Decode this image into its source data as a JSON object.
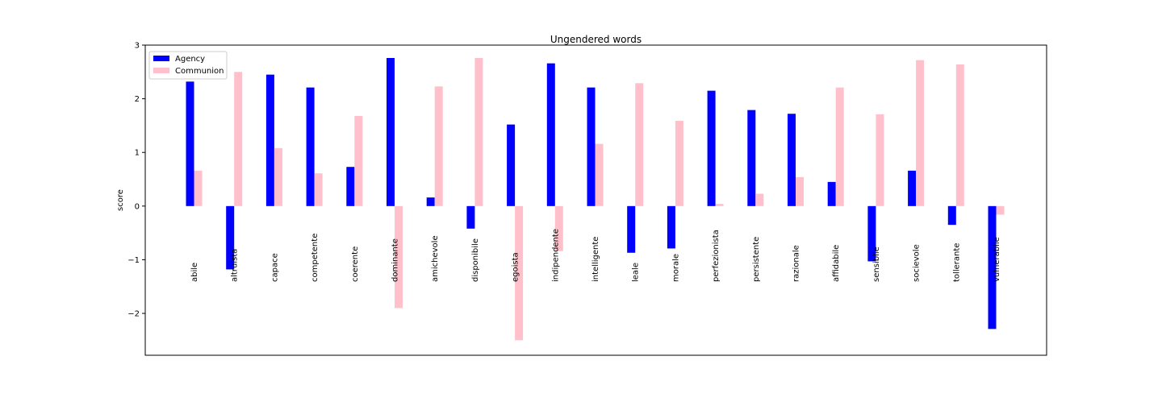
{
  "chart_data": {
    "type": "bar",
    "title": "Ungendered words",
    "xlabel": "",
    "ylabel": "score",
    "ylim": [
      -2.78,
      3.0
    ],
    "yticks": [
      3,
      2,
      1,
      0,
      -1,
      -2
    ],
    "ytick_labels": [
      "3",
      "2",
      "1",
      "0",
      "−1",
      "−2"
    ],
    "grid": false,
    "legend_position": "upper-left",
    "categories": [
      "abile",
      "altruista",
      "capace",
      "competente",
      "coerente",
      "dominante",
      "amichevole",
      "disponibile",
      "egoista",
      "indipendente",
      "intelligente",
      "leale",
      "morale",
      "perfezionista",
      "persistente",
      "razionale",
      "affidabile",
      "sensibile",
      "socievole",
      "tollerante",
      "vulnerabile"
    ],
    "series": [
      {
        "name": "Agency",
        "color": "#0000ff",
        "values": [
          2.32,
          -1.18,
          2.45,
          2.21,
          0.73,
          2.76,
          0.16,
          -0.42,
          1.52,
          2.66,
          2.21,
          -0.87,
          -0.79,
          2.15,
          1.79,
          1.72,
          0.45,
          -1.03,
          0.66,
          -0.35,
          -2.29
        ]
      },
      {
        "name": "Communion",
        "color": "#ffc0cb",
        "values": [
          0.66,
          2.5,
          1.08,
          0.61,
          1.68,
          -1.9,
          2.23,
          2.76,
          -2.5,
          -0.84,
          1.16,
          2.29,
          1.59,
          0.04,
          0.23,
          0.54,
          2.21,
          1.71,
          2.72,
          2.64,
          -0.16
        ]
      }
    ]
  }
}
